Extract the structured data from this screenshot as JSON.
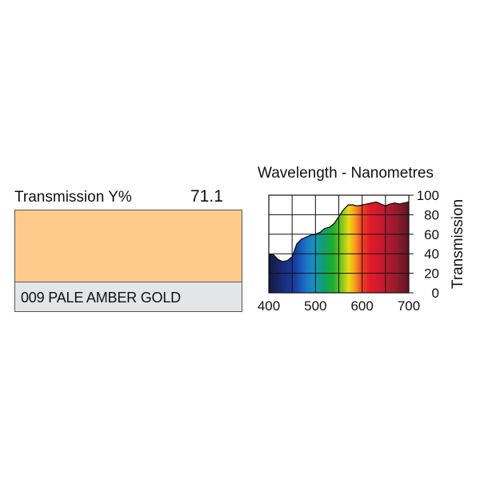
{
  "transmission": {
    "label": "Transmission Y%",
    "value": "71.1"
  },
  "swatch": {
    "color": "#ffcb8d",
    "name": "009 PALE AMBER GOLD"
  },
  "chart_data": {
    "type": "area",
    "title": "Wavelength - Nanometres",
    "xlabel": "",
    "ylabel": "Transmission",
    "xlim": [
      400,
      700
    ],
    "ylim": [
      0,
      100
    ],
    "xticks": [
      "400",
      "500",
      "600",
      "700"
    ],
    "yticks": [
      "0",
      "20",
      "40",
      "60",
      "80",
      "100"
    ],
    "grid": true,
    "x": [
      400,
      410,
      420,
      430,
      440,
      450,
      460,
      470,
      480,
      490,
      500,
      510,
      520,
      530,
      540,
      550,
      560,
      570,
      580,
      590,
      600,
      610,
      620,
      630,
      640,
      650,
      660,
      670,
      680,
      690,
      700
    ],
    "y": [
      39,
      39,
      34,
      32,
      33,
      37,
      50,
      55,
      57,
      59,
      60,
      62,
      66,
      67,
      71,
      78,
      85,
      90,
      90,
      89,
      90,
      91,
      92,
      93,
      91,
      89,
      91,
      92,
      91,
      92,
      93
    ]
  }
}
